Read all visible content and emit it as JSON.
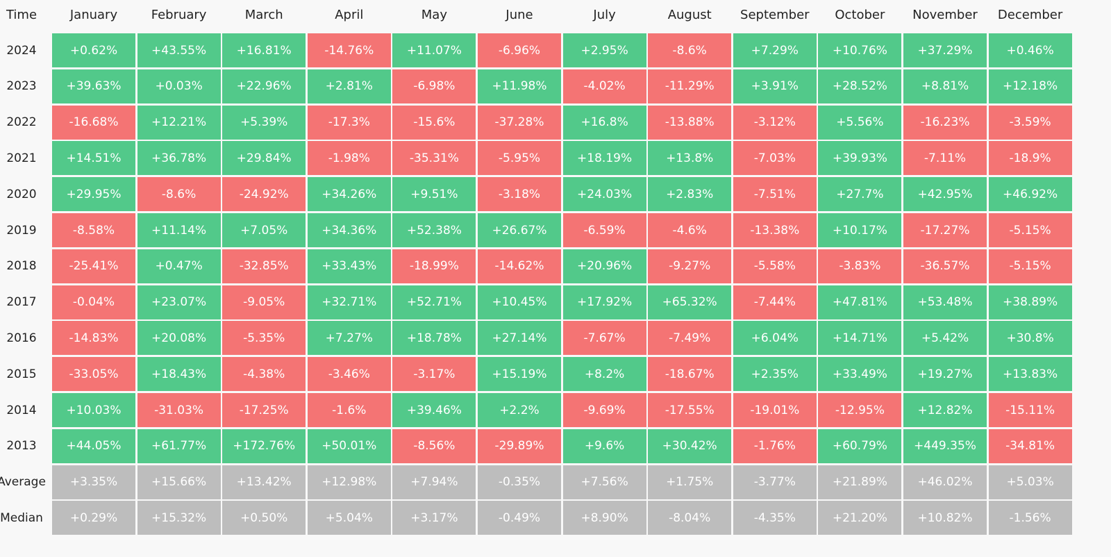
{
  "table": {
    "header": [
      "Time",
      "January",
      "February",
      "March",
      "April",
      "May",
      "June",
      "July",
      "August",
      "September",
      "October",
      "November",
      "December"
    ],
    "rows": [
      [
        "2024",
        "+0.62%",
        "+43.55%",
        "+16.81%",
        "-14.76%",
        "+11.07%",
        "-6.96%",
        "+2.95%",
        "-8.6%",
        "+7.29%",
        "+10.76%",
        "+37.29%",
        "+0.46%"
      ],
      [
        "2023",
        "+39.63%",
        "+0.03%",
        "+22.96%",
        "+2.81%",
        "-6.98%",
        "+11.98%",
        "-4.02%",
        "-11.29%",
        "+3.91%",
        "+28.52%",
        "+8.81%",
        "+12.18%"
      ],
      [
        "2022",
        "-16.68%",
        "+12.21%",
        "+5.39%",
        "-17.3%",
        "-15.6%",
        "-37.28%",
        "+16.8%",
        "-13.88%",
        "-3.12%",
        "+5.56%",
        "-16.23%",
        "-3.59%"
      ],
      [
        "2021",
        "+14.51%",
        "+36.78%",
        "+29.84%",
        "-1.98%",
        "-35.31%",
        "-5.95%",
        "+18.19%",
        "+13.8%",
        "-7.03%",
        "+39.93%",
        "-7.11%",
        "-18.9%"
      ],
      [
        "2020",
        "+29.95%",
        "-8.6%",
        "-24.92%",
        "+34.26%",
        "+9.51%",
        "-3.18%",
        "+24.03%",
        "+2.83%",
        "-7.51%",
        "+27.7%",
        "+42.95%",
        "+46.92%"
      ],
      [
        "2019",
        "-8.58%",
        "+11.14%",
        "+7.05%",
        "+34.36%",
        "+52.38%",
        "+26.67%",
        "-6.59%",
        "-4.6%",
        "-13.38%",
        "+10.17%",
        "-17.27%",
        "-5.15%"
      ],
      [
        "2018",
        "-25.41%",
        "+0.47%",
        "-32.85%",
        "+33.43%",
        "-18.99%",
        "-14.62%",
        "+20.96%",
        "-9.27%",
        "-5.58%",
        "-3.83%",
        "-36.57%",
        "-5.15%"
      ],
      [
        "2017",
        "-0.04%",
        "+23.07%",
        "-9.05%",
        "+32.71%",
        "+52.71%",
        "+10.45%",
        "+17.92%",
        "+65.32%",
        "-7.44%",
        "+47.81%",
        "+53.48%",
        "+38.89%"
      ],
      [
        "2016",
        "-14.83%",
        "+20.08%",
        "-5.35%",
        "+7.27%",
        "+18.78%",
        "+27.14%",
        "-7.67%",
        "-7.49%",
        "+6.04%",
        "+14.71%",
        "+5.42%",
        "+30.8%"
      ],
      [
        "2015",
        "-33.05%",
        "+18.43%",
        "-4.38%",
        "-3.46%",
        "-3.17%",
        "+15.19%",
        "+8.2%",
        "-18.67%",
        "+2.35%",
        "+33.49%",
        "+19.27%",
        "+13.83%"
      ],
      [
        "2014",
        "+10.03%",
        "-31.03%",
        "-17.25%",
        "-1.6%",
        "+39.46%",
        "+2.2%",
        "-9.69%",
        "-17.55%",
        "-19.01%",
        "-12.95%",
        "+12.82%",
        "-15.11%"
      ],
      [
        "2013",
        "+44.05%",
        "+61.77%",
        "+172.76%",
        "+50.01%",
        "-8.56%",
        "-29.89%",
        "+9.6%",
        "+30.42%",
        "-1.76%",
        "+60.79%",
        "+449.35%",
        "-34.81%"
      ]
    ],
    "summary_rows": [
      [
        "Average",
        "+3.35%",
        "+15.66%",
        "+13.42%",
        "+12.98%",
        "+7.94%",
        "-0.35%",
        "+7.56%",
        "+1.75%",
        "-3.77%",
        "+21.89%",
        "+46.02%",
        "+5.03%"
      ],
      [
        "Median",
        "+0.29%",
        "+15.32%",
        "+0.50%",
        "+5.04%",
        "+3.17%",
        "-0.49%",
        "+8.90%",
        "-8.04%",
        "-4.35%",
        "+21.20%",
        "+10.82%",
        "-1.56%"
      ]
    ]
  }
}
